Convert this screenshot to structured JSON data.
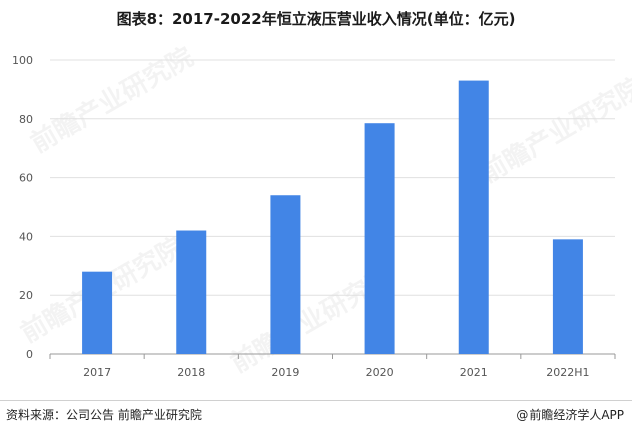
{
  "title": "图表8：2017-2022年恒立液压营业收入情况(单位：亿元)",
  "source": "资料来源：公司公告 前瞻产业研究院",
  "brand": "前瞻经济学人APP",
  "watermark_text": "前瞻产业研究院",
  "colors": {
    "bar": "#4285e6",
    "axis": "#999999",
    "grid": "#e0e0e0"
  },
  "chart_data": {
    "type": "bar",
    "title": "图表8：2017-2022年恒立液压营业收入情况(单位：亿元)",
    "categories": [
      "2017",
      "2018",
      "2019",
      "2020",
      "2021",
      "2022H1"
    ],
    "values": [
      28.0,
      42.0,
      54.0,
      78.5,
      93.0,
      39.0
    ],
    "xlabel": "",
    "ylabel": "",
    "ylim": [
      0,
      100
    ],
    "yticks": [
      0,
      20,
      40,
      60,
      80,
      100
    ],
    "grid": true,
    "legend": "none"
  }
}
